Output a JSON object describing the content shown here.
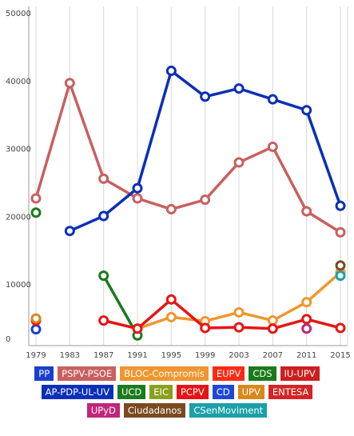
{
  "chart_data": {
    "type": "line",
    "title": "",
    "xlabel": "",
    "ylabel": "",
    "x": [
      "1979",
      "1983",
      "1987",
      "1991",
      "1995",
      "1999",
      "2003",
      "2007",
      "2011",
      "2015"
    ],
    "ylim": [
      0,
      50000
    ],
    "yticks": [
      "0",
      "10000",
      "20000",
      "30000",
      "40000",
      "50000"
    ],
    "grid": "vertical",
    "legend_position": "bottom",
    "series": [
      {
        "name": "PP",
        "color": "#1a3fcf",
        "values": [
          2400,
          null,
          null,
          null,
          null,
          null,
          null,
          null,
          null,
          null
        ]
      },
      {
        "name": "PSPV-PSOE",
        "color": "#c86060",
        "values": [
          21700,
          38700,
          24600,
          21700,
          20100,
          21500,
          27000,
          29300,
          19800,
          16700
        ]
      },
      {
        "name": "BLOC-Compromís",
        "color": "#f0962e",
        "values": [
          null,
          null,
          null,
          2500,
          4200,
          3600,
          4900,
          3700,
          6400,
          10800
        ]
      },
      {
        "name": "EUPV",
        "color": "#ff2a14",
        "values": [
          null,
          null,
          null,
          null,
          null,
          null,
          null,
          null,
          null,
          null
        ]
      },
      {
        "name": "CDS",
        "color": "#1a7a1a",
        "values": [
          null,
          null,
          null,
          null,
          null,
          null,
          null,
          null,
          null,
          null
        ]
      },
      {
        "name": "IU-UPV",
        "color": "#cc1f1f",
        "values": [
          null,
          null,
          null,
          null,
          null,
          null,
          null,
          null,
          null,
          null
        ]
      },
      {
        "name": "AP-PDP-UL-UV",
        "color": "#0a2fb8",
        "values": [
          null,
          16900,
          19100,
          23200,
          40500,
          36700,
          37900,
          36300,
          34700,
          20600
        ]
      },
      {
        "name": "UCD",
        "color": "#1b7a1e",
        "values": [
          19600,
          null,
          10300,
          1500,
          null,
          null,
          null,
          null,
          null,
          null
        ]
      },
      {
        "name": "EIC",
        "color": "#8aa01e",
        "values": [
          null,
          null,
          null,
          null,
          null,
          null,
          null,
          null,
          null,
          null
        ]
      },
      {
        "name": "PCPV",
        "color": "#e81414",
        "values": [
          3700,
          null,
          3700,
          2500,
          6800,
          2600,
          2700,
          2500,
          3900,
          2600
        ]
      },
      {
        "name": "CD",
        "color": "#1f47d6",
        "values": [
          null,
          null,
          null,
          null,
          null,
          null,
          null,
          null,
          null,
          null
        ]
      },
      {
        "name": "UPV",
        "color": "#d9881c",
        "values": [
          4000,
          null,
          null,
          null,
          null,
          null,
          null,
          null,
          null,
          null
        ]
      },
      {
        "name": "ENTESA",
        "color": "#d42424",
        "values": [
          null,
          null,
          null,
          null,
          null,
          null,
          null,
          null,
          null,
          null
        ]
      },
      {
        "name": "UPyD",
        "color": "#c0267a",
        "values": [
          null,
          null,
          null,
          null,
          null,
          null,
          null,
          null,
          2500,
          null
        ]
      },
      {
        "name": "Ciudadanos",
        "color": "#7a4a20",
        "values": [
          null,
          null,
          null,
          null,
          null,
          null,
          null,
          null,
          null,
          11800
        ]
      },
      {
        "name": "CSenMoviment",
        "color": "#1aa0a8",
        "values": [
          null,
          null,
          null,
          null,
          null,
          null,
          null,
          null,
          null,
          10300
        ]
      }
    ]
  },
  "legend": {
    "rows": [
      [
        {
          "label": "PP",
          "color": "#1a3fcf"
        },
        {
          "label": "PSPV-PSOE",
          "color": "#c86060"
        },
        {
          "label": "BLOC-Compromís",
          "color": "#f0962e"
        },
        {
          "label": "EUPV",
          "color": "#ff2a14"
        },
        {
          "label": "CDS",
          "color": "#1a7a1a"
        },
        {
          "label": "IU-UPV",
          "color": "#cc1f1f"
        }
      ],
      [
        {
          "label": "AP-PDP-UL-UV",
          "color": "#0a2fb8"
        },
        {
          "label": "UCD",
          "color": "#1b7a1e"
        },
        {
          "label": "EIC",
          "color": "#8aa01e"
        },
        {
          "label": "PCPV",
          "color": "#e81414"
        },
        {
          "label": "CD",
          "color": "#1f47d6"
        },
        {
          "label": "UPV",
          "color": "#d9881c"
        },
        {
          "label": "ENTESA",
          "color": "#d42424"
        }
      ],
      [
        {
          "label": "UPyD",
          "color": "#c0267a"
        },
        {
          "label": "Ciudadanos",
          "color": "#7a4a20"
        },
        {
          "label": "CSenMoviment",
          "color": "#1aa0a8"
        }
      ]
    ]
  }
}
